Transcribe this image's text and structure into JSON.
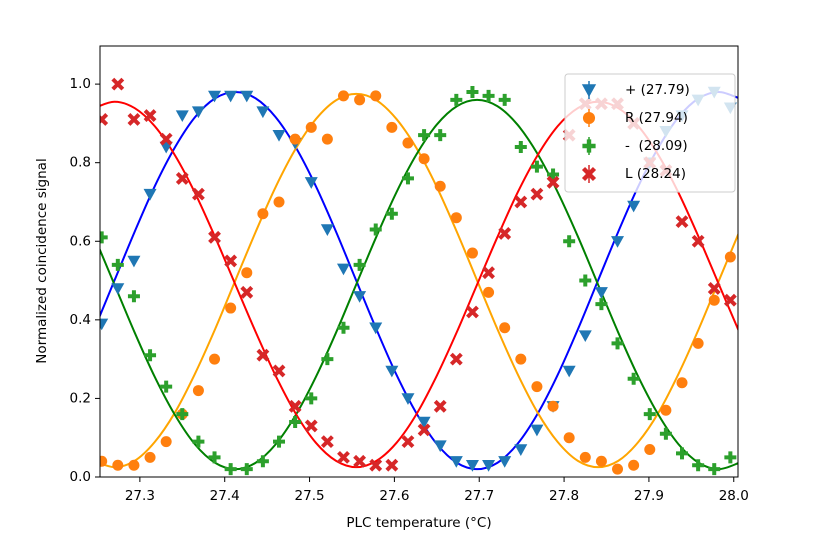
{
  "chart_data": {
    "type": "scatter",
    "x_label": "PLC temperature (°C)",
    "y_label": "Normalized coincidence signal",
    "xlim": [
      27.253,
      28.005
    ],
    "ylim": [
      0,
      1.097
    ],
    "xticks": [
      27.3,
      27.4,
      27.5,
      27.6,
      27.7,
      27.8,
      27.9,
      {
        "value": 28,
        "label": "28.0"
      }
    ],
    "yticks": [
      {
        "value": 0,
        "label": "0.0"
      },
      0.2,
      0.4,
      0.6,
      0.8,
      {
        "value": 1,
        "label": "1.0"
      }
    ],
    "grid": false,
    "legend": "upper right",
    "x": [
      27.255,
      27.274,
      27.293,
      27.312,
      27.331,
      27.35,
      27.369,
      27.388,
      27.407,
      27.426,
      27.445,
      27.464,
      27.483,
      27.502,
      27.521,
      27.54,
      27.559,
      27.578,
      27.597,
      27.616,
      27.635,
      27.654,
      27.673,
      27.692,
      27.711,
      27.73,
      27.749,
      27.768,
      27.787,
      27.806,
      27.825,
      27.844,
      27.863,
      27.882,
      27.901,
      27.92,
      27.939,
      27.958,
      27.977,
      27.996
    ],
    "fit_x": [
      27.2463,
      27.27,
      27.2938,
      27.3175,
      27.3413,
      27.365,
      27.3888,
      27.4125,
      27.4363,
      27.46,
      27.4838,
      27.5075,
      27.5313,
      27.555,
      27.5788,
      27.6025,
      27.6263,
      27.65,
      27.6738,
      27.6975,
      27.7213,
      27.745,
      27.7688,
      27.7925,
      27.8163,
      27.84,
      27.8638,
      27.8875,
      27.9113,
      27.935,
      27.9588,
      27.9825,
      28.0063
    ],
    "series": [
      {
        "name": "+ (27.79)",
        "color": "#1f77b4",
        "marker": "triangle-down",
        "fit_color": "#0000ff",
        "values": [
          0.39,
          0.48,
          0.55,
          0.72,
          0.84,
          0.92,
          0.93,
          0.97,
          0.97,
          0.97,
          0.93,
          0.87,
          0.85,
          0.75,
          0.63,
          0.53,
          0.46,
          0.38,
          0.27,
          0.2,
          0.14,
          0.08,
          0.04,
          0.03,
          0.03,
          0.04,
          0.07,
          0.12,
          0.18,
          0.27,
          0.36,
          0.47,
          0.6,
          0.69,
          0.8,
          0.88,
          0.92,
          0.96,
          0.98,
          0.94
        ],
        "fit_values": [
          0.376,
          0.5,
          0.624,
          0.74,
          0.839,
          0.916,
          0.964,
          0.98,
          0.964,
          0.916,
          0.839,
          0.74,
          0.624,
          0.5,
          0.376,
          0.26,
          0.161,
          0.084,
          0.036,
          0.02,
          0.036,
          0.084,
          0.161,
          0.26,
          0.376,
          0.5,
          0.624,
          0.74,
          0.839,
          0.916,
          0.964,
          0.98,
          0.964
        ]
      },
      {
        "name": "R (27.94)",
        "color": "#ff7f0e",
        "marker": "circle",
        "fit_color": "#ffa500",
        "values": [
          0.04,
          0.03,
          0.03,
          0.05,
          0.09,
          0.16,
          0.22,
          0.3,
          0.43,
          0.52,
          0.67,
          0.7,
          0.86,
          0.89,
          0.86,
          0.97,
          0.96,
          0.97,
          0.89,
          0.85,
          0.81,
          0.74,
          0.66,
          0.57,
          0.47,
          0.38,
          0.3,
          0.23,
          0.18,
          0.1,
          0.05,
          0.04,
          0.02,
          0.03,
          0.07,
          0.17,
          0.24,
          0.34,
          0.45,
          0.56
        ],
        "fit_values": [
          0.041,
          0.025,
          0.041,
          0.089,
          0.164,
          0.263,
          0.377,
          0.5,
          0.623,
          0.738,
          0.836,
          0.911,
          0.959,
          0.975,
          0.959,
          0.911,
          0.836,
          0.738,
          0.623,
          0.5,
          0.377,
          0.263,
          0.164,
          0.089,
          0.041,
          0.025,
          0.041,
          0.089,
          0.164,
          0.263,
          0.377,
          0.5,
          0.623
        ]
      },
      {
        "name": "-  (28.09)",
        "color": "#2ca02c",
        "marker": "plus",
        "fit_color": "#008000",
        "values": [
          0.61,
          0.54,
          0.46,
          0.31,
          0.23,
          0.16,
          0.09,
          0.05,
          0.02,
          0.02,
          0.04,
          0.09,
          0.14,
          0.2,
          0.3,
          0.38,
          0.54,
          0.63,
          0.67,
          0.76,
          0.87,
          0.87,
          0.96,
          0.98,
          0.97,
          0.96,
          0.84,
          0.79,
          0.77,
          0.6,
          0.5,
          0.44,
          0.34,
          0.25,
          0.16,
          0.11,
          0.06,
          0.03,
          0.02,
          0.05
        ],
        "fit_values": [
          0.612,
          0.49,
          0.368,
          0.255,
          0.158,
          0.083,
          0.036,
          0.02,
          0.036,
          0.083,
          0.158,
          0.255,
          0.368,
          0.49,
          0.612,
          0.725,
          0.822,
          0.897,
          0.944,
          0.96,
          0.944,
          0.897,
          0.822,
          0.725,
          0.612,
          0.49,
          0.368,
          0.255,
          0.158,
          0.083,
          0.036,
          0.02,
          0.036
        ]
      },
      {
        "name": "L (28.24)",
        "color": "#d62728",
        "marker": "x",
        "fit_color": "#ff0000",
        "values": [
          0.91,
          1.0,
          0.91,
          0.92,
          0.86,
          0.76,
          0.72,
          0.61,
          0.55,
          0.47,
          0.31,
          0.27,
          0.18,
          0.13,
          0.09,
          0.05,
          0.04,
          0.03,
          0.03,
          0.09,
          0.12,
          0.18,
          0.3,
          0.42,
          0.52,
          0.62,
          0.7,
          0.72,
          0.75,
          0.87,
          0.95,
          0.95,
          0.95,
          0.9,
          0.8,
          0.78,
          0.65,
          0.6,
          0.48,
          0.45
        ],
        "fit_values": [
          0.939,
          0.955,
          0.939,
          0.893,
          0.819,
          0.723,
          0.61,
          0.49,
          0.37,
          0.258,
          0.161,
          0.087,
          0.041,
          0.025,
          0.041,
          0.087,
          0.161,
          0.258,
          0.37,
          0.49,
          0.61,
          0.723,
          0.819,
          0.893,
          0.939,
          0.955,
          0.939,
          0.893,
          0.819,
          0.723,
          0.61,
          0.49,
          0.37
        ]
      }
    ]
  }
}
